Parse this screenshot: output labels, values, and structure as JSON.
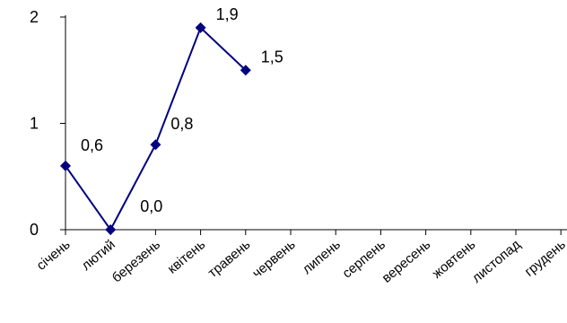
{
  "chart_data": {
    "type": "line",
    "title": "",
    "xlabel": "",
    "ylabel": "",
    "categories": [
      "січень",
      "лютий",
      "березень",
      "квітень",
      "травень",
      "червень",
      "липень",
      "серпень",
      "вересень",
      "жовтень",
      "листопад",
      "грудень"
    ],
    "series": [
      {
        "values": [
          0.6,
          0.0,
          0.8,
          1.9,
          1.5,
          null,
          null,
          null,
          null,
          null,
          null,
          null
        ]
      }
    ],
    "data_labels": [
      "0,6",
      "0,0",
      "0,8",
      "1,9",
      "1,5"
    ],
    "y_ticks": [
      "0",
      "1",
      "2"
    ],
    "ylim": [
      0,
      2
    ],
    "grid": false,
    "legend": "none",
    "colors": {
      "line": "#000080",
      "marker": "#000080",
      "axis": "#000000"
    }
  }
}
